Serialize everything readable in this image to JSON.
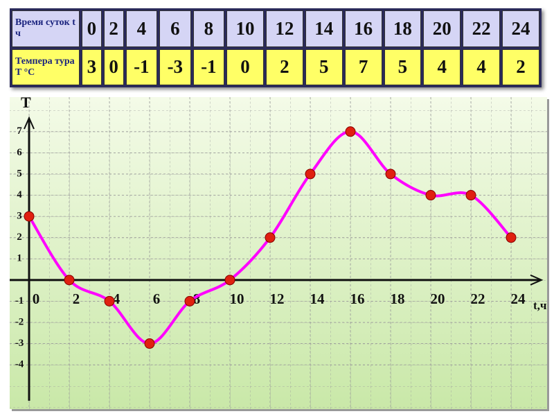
{
  "chart_data": {
    "type": "line",
    "table_row_labels": [
      "Время суток t ч",
      "Темпера тура T °C"
    ],
    "y_label": "T",
    "x_label": "t,ч",
    "x": [
      0,
      2,
      4,
      6,
      8,
      10,
      12,
      14,
      16,
      18,
      20,
      22,
      24
    ],
    "values": [
      3,
      0,
      -1,
      -3,
      -1,
      0,
      2,
      5,
      7,
      5,
      4,
      4,
      2
    ],
    "line_color": "#ff00ff",
    "marker_color": "#e02010",
    "xlim": [
      0,
      25
    ],
    "ylim": [
      -5.5,
      7.5
    ],
    "xticks": [
      0,
      2,
      4,
      6,
      8,
      10,
      12,
      14,
      16,
      18,
      20,
      22,
      24
    ],
    "yticks": [
      -4,
      -3,
      -2,
      -1,
      1,
      2,
      3,
      4,
      5,
      6,
      7
    ],
    "grid": true
  }
}
